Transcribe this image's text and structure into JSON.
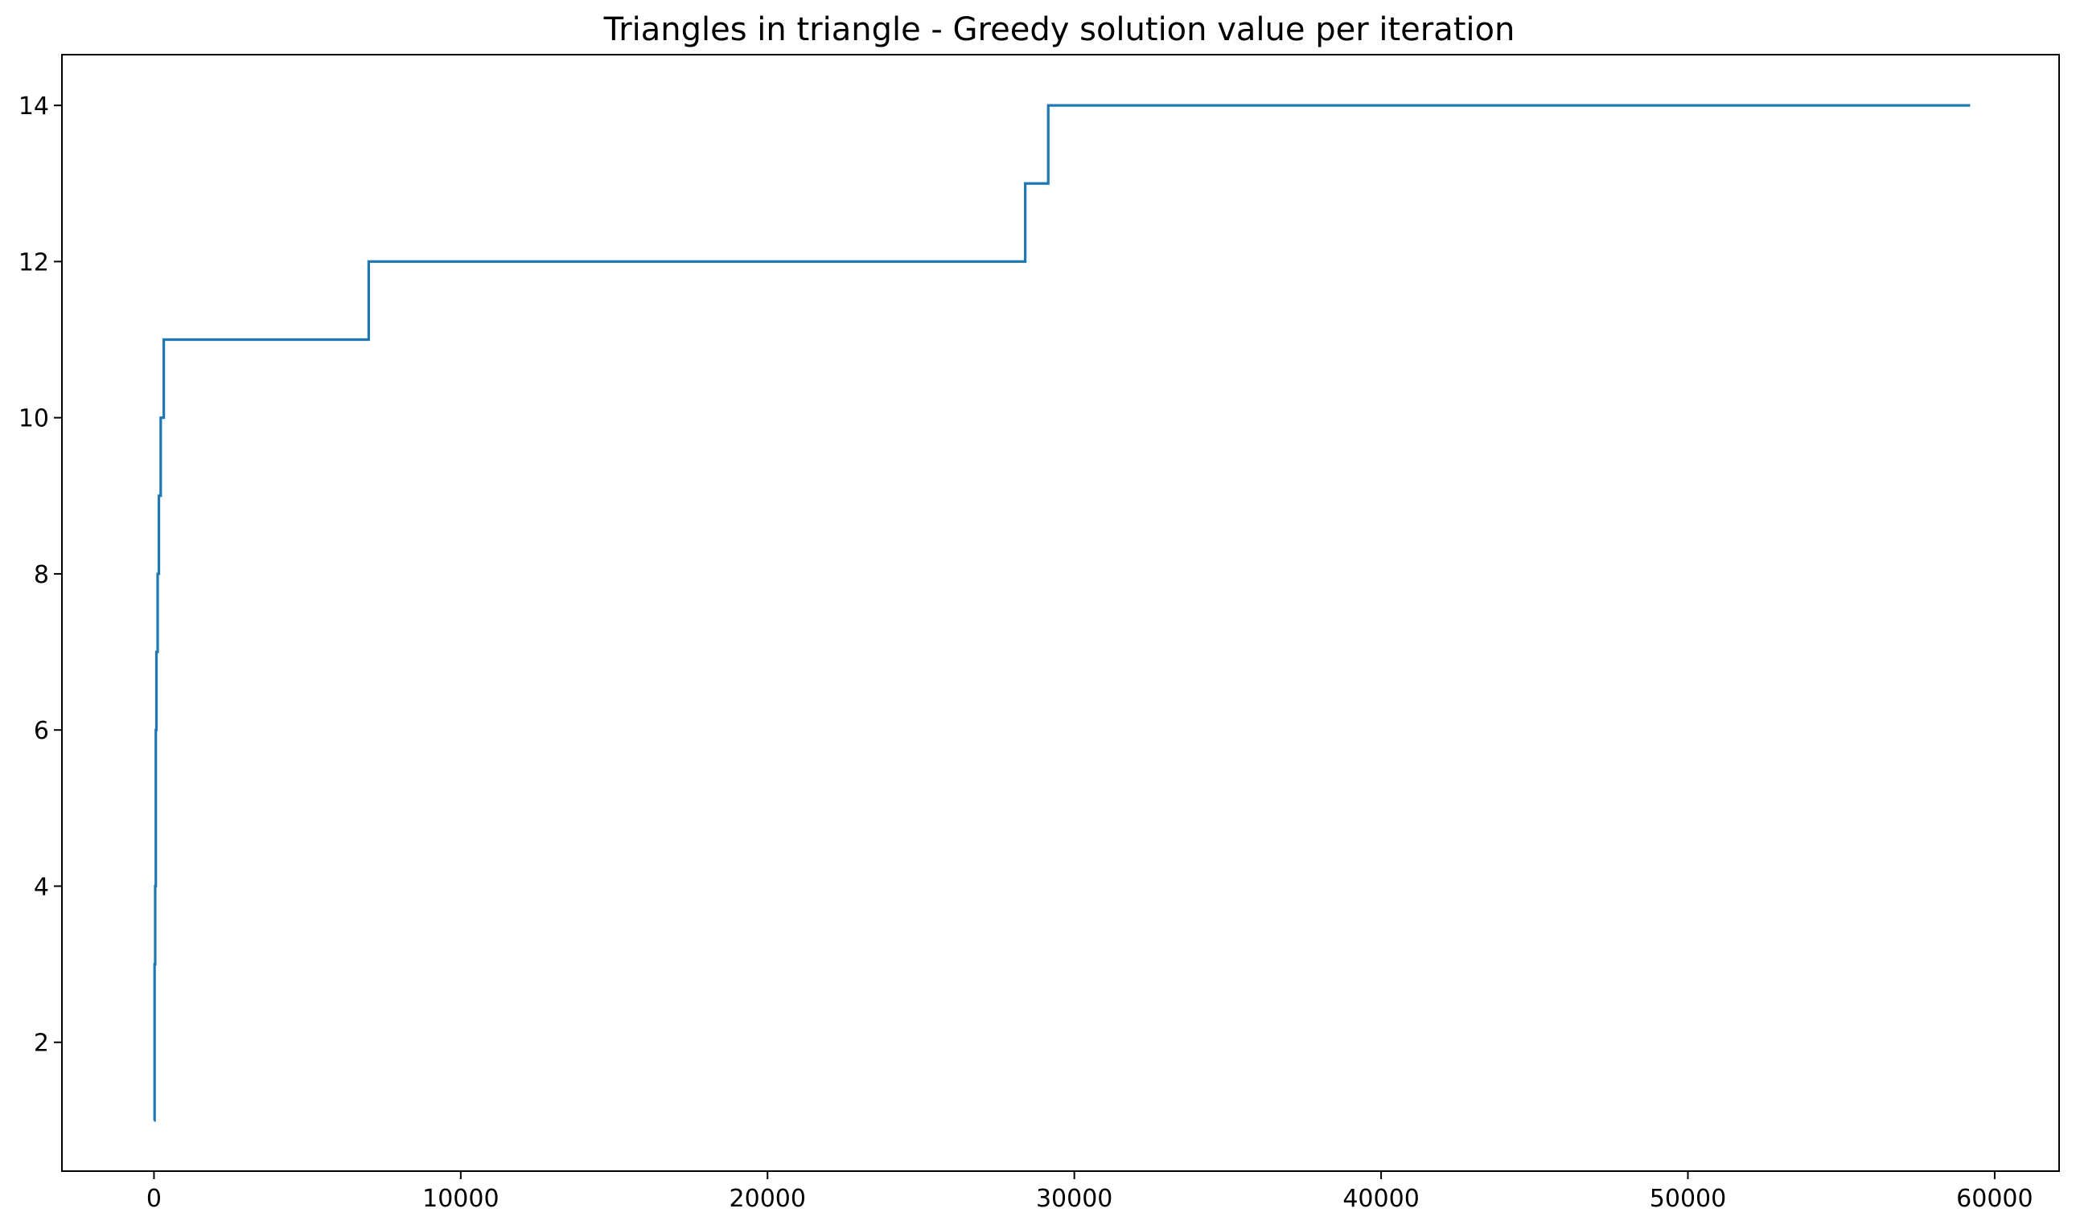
{
  "chart_data": {
    "type": "line",
    "title": "Triangles in triangle - Greedy solution value per iteration",
    "xlabel": "",
    "ylabel": "",
    "xlim": [
      -3000,
      62100
    ],
    "ylim": [
      0.35,
      14.65
    ],
    "x_ticks": [
      0,
      10000,
      20000,
      30000,
      40000,
      50000,
      60000
    ],
    "y_ticks": [
      2,
      4,
      6,
      8,
      10,
      12,
      14
    ],
    "grid": false,
    "legend": "none",
    "step": "post",
    "series": [
      {
        "color": "#1f77b4",
        "x": [
          0,
          20,
          40,
          60,
          80,
          120,
          160,
          220,
          260,
          320,
          7000,
          28400,
          29150,
          59200
        ],
        "y": [
          1,
          3,
          4,
          6,
          7,
          8,
          9,
          10,
          10,
          11,
          12,
          13,
          14,
          14
        ]
      }
    ]
  }
}
